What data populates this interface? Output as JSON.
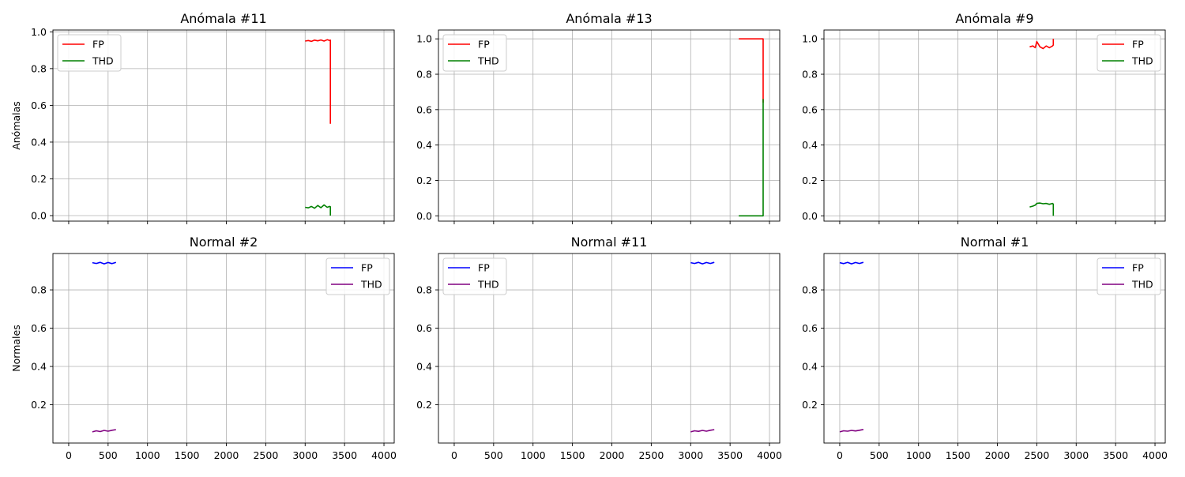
{
  "chart_data": [
    {
      "type": "line",
      "title": "Anómala #11",
      "ylabel": "Anómalas",
      "xlabel": "",
      "xlim": [
        -200,
        4130
      ],
      "ylim": [
        -0.03,
        1.01
      ],
      "xticks": [
        0,
        500,
        1000,
        1500,
        2000,
        2500,
        3000,
        3500,
        4000
      ],
      "yticks": [
        0.0,
        0.2,
        0.4,
        0.6,
        0.8,
        1.0
      ],
      "show_xtick_labels": false,
      "grid": true,
      "legend_loc": "upper-left",
      "series": [
        {
          "name": "FP",
          "color": "#ff0000",
          "x": [
            3000,
            3040,
            3080,
            3120,
            3160,
            3200,
            3240,
            3280,
            3310,
            3320,
            3320
          ],
          "y": [
            0.95,
            0.953,
            0.948,
            0.955,
            0.951,
            0.956,
            0.95,
            0.957,
            0.953,
            0.955,
            0.5
          ]
        },
        {
          "name": "THD",
          "color": "#008000",
          "x": [
            3000,
            3040,
            3080,
            3120,
            3160,
            3200,
            3240,
            3280,
            3310,
            3320,
            3320
          ],
          "y": [
            0.045,
            0.042,
            0.05,
            0.04,
            0.055,
            0.043,
            0.058,
            0.045,
            0.05,
            0.048,
            0.0
          ]
        }
      ]
    },
    {
      "type": "line",
      "title": "Anómala #13",
      "ylabel": "",
      "xlabel": "",
      "xlim": [
        -200,
        4130
      ],
      "ylim": [
        -0.03,
        1.05
      ],
      "xticks": [
        0,
        500,
        1000,
        1500,
        2000,
        2500,
        3000,
        3500,
        4000
      ],
      "yticks": [
        0.0,
        0.2,
        0.4,
        0.6,
        0.8,
        1.0
      ],
      "show_xtick_labels": false,
      "grid": true,
      "legend_loc": "upper-left",
      "series": [
        {
          "name": "FP",
          "color": "#ff0000",
          "x": [
            3610,
            3920,
            3920
          ],
          "y": [
            1.0,
            1.0,
            0.64
          ]
        },
        {
          "name": "THD",
          "color": "#008000",
          "x": [
            3610,
            3920,
            3920
          ],
          "y": [
            0.0,
            0.0,
            0.66
          ]
        }
      ]
    },
    {
      "type": "line",
      "title": "Anómala #9",
      "ylabel": "",
      "xlabel": "",
      "xlim": [
        -200,
        4130
      ],
      "ylim": [
        -0.03,
        1.05
      ],
      "xticks": [
        0,
        500,
        1000,
        1500,
        2000,
        2500,
        3000,
        3500,
        4000
      ],
      "yticks": [
        0.0,
        0.2,
        0.4,
        0.6,
        0.8,
        1.0
      ],
      "show_xtick_labels": false,
      "grid": true,
      "legend_loc": "upper-right",
      "series": [
        {
          "name": "FP",
          "color": "#ff0000",
          "x": [
            2410,
            2450,
            2480,
            2500,
            2540,
            2580,
            2620,
            2660,
            2700,
            2710,
            2710
          ],
          "y": [
            0.955,
            0.96,
            0.95,
            0.985,
            0.955,
            0.945,
            0.96,
            0.95,
            0.96,
            0.965,
            1.0
          ]
        },
        {
          "name": "THD",
          "color": "#008000",
          "x": [
            2410,
            2450,
            2480,
            2500,
            2540,
            2580,
            2620,
            2660,
            2700,
            2710,
            2710
          ],
          "y": [
            0.05,
            0.055,
            0.06,
            0.07,
            0.072,
            0.068,
            0.07,
            0.065,
            0.07,
            0.066,
            0.0
          ]
        }
      ]
    },
    {
      "type": "line",
      "title": "Normal #2",
      "ylabel": "Normales",
      "xlabel": "",
      "xlim": [
        -200,
        4130
      ],
      "ylim": [
        0.0,
        0.99
      ],
      "xticks": [
        0,
        500,
        1000,
        1500,
        2000,
        2500,
        3000,
        3500,
        4000
      ],
      "yticks": [
        0.2,
        0.4,
        0.6,
        0.8
      ],
      "show_xtick_labels": true,
      "grid": true,
      "legend_loc": "upper-right",
      "series": [
        {
          "name": "FP",
          "color": "#0000ff",
          "x": [
            300,
            350,
            400,
            450,
            500,
            550,
            600
          ],
          "y": [
            0.942,
            0.938,
            0.944,
            0.936,
            0.943,
            0.937,
            0.944
          ]
        },
        {
          "name": "THD",
          "color": "#800080",
          "x": [
            300,
            350,
            400,
            450,
            500,
            550,
            600
          ],
          "y": [
            0.058,
            0.064,
            0.06,
            0.066,
            0.062,
            0.067,
            0.07
          ]
        }
      ]
    },
    {
      "type": "line",
      "title": "Normal #11",
      "ylabel": "",
      "xlabel": "",
      "xlim": [
        -200,
        4130
      ],
      "ylim": [
        0.0,
        0.99
      ],
      "xticks": [
        0,
        500,
        1000,
        1500,
        2000,
        2500,
        3000,
        3500,
        4000
      ],
      "yticks": [
        0.2,
        0.4,
        0.6,
        0.8
      ],
      "show_xtick_labels": true,
      "grid": true,
      "legend_loc": "upper-left",
      "series": [
        {
          "name": "FP",
          "color": "#0000ff",
          "x": [
            3000,
            3050,
            3100,
            3150,
            3200,
            3250,
            3300
          ],
          "y": [
            0.942,
            0.938,
            0.944,
            0.936,
            0.943,
            0.938,
            0.944
          ]
        },
        {
          "name": "THD",
          "color": "#800080",
          "x": [
            3000,
            3050,
            3100,
            3150,
            3200,
            3250,
            3300
          ],
          "y": [
            0.058,
            0.064,
            0.061,
            0.066,
            0.062,
            0.067,
            0.07
          ]
        }
      ]
    },
    {
      "type": "line",
      "title": "Normal #1",
      "ylabel": "",
      "xlabel": "",
      "xlim": [
        -200,
        4130
      ],
      "ylim": [
        0.0,
        0.99
      ],
      "xticks": [
        0,
        500,
        1000,
        1500,
        2000,
        2500,
        3000,
        3500,
        4000
      ],
      "yticks": [
        0.2,
        0.4,
        0.6,
        0.8
      ],
      "show_xtick_labels": true,
      "grid": true,
      "legend_loc": "upper-right",
      "series": [
        {
          "name": "FP",
          "color": "#0000ff",
          "x": [
            0,
            50,
            100,
            150,
            200,
            250,
            300
          ],
          "y": [
            0.942,
            0.937,
            0.944,
            0.936,
            0.943,
            0.938,
            0.944
          ]
        },
        {
          "name": "THD",
          "color": "#800080",
          "x": [
            0,
            50,
            100,
            150,
            200,
            250,
            300
          ],
          "y": [
            0.058,
            0.064,
            0.062,
            0.066,
            0.063,
            0.067,
            0.071
          ]
        }
      ]
    }
  ]
}
